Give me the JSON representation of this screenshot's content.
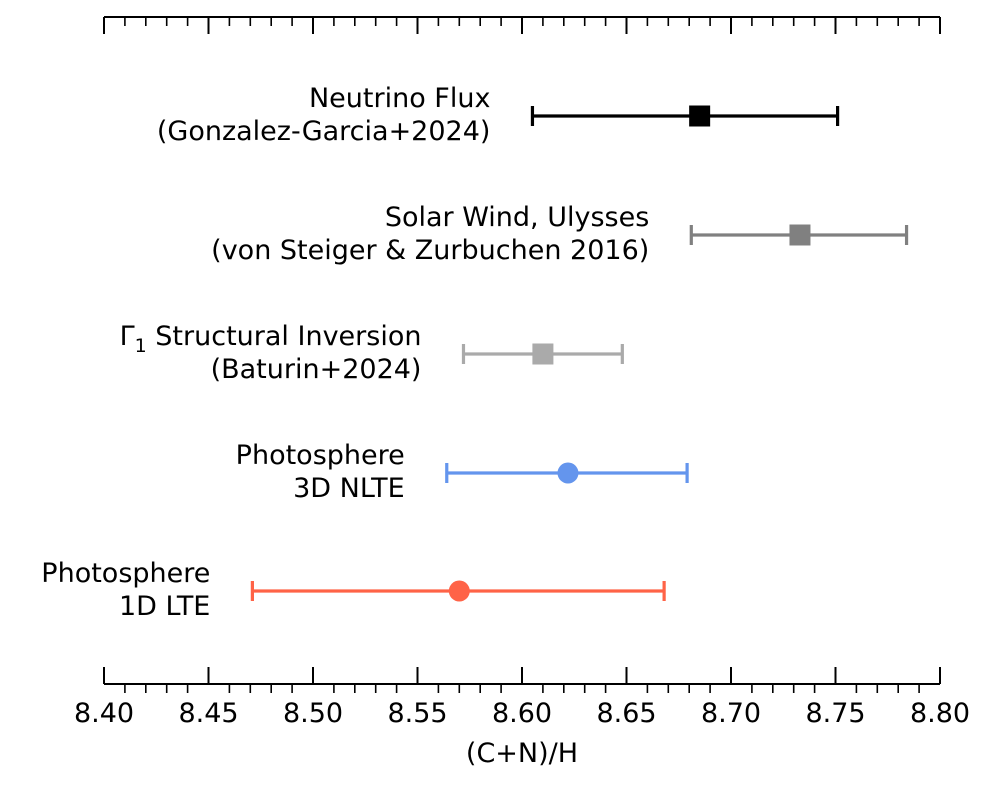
{
  "chart_data": {
    "type": "errorbar",
    "xlabel": "(C+N)/H",
    "xlim": [
      8.4,
      8.8
    ],
    "major_ticks": [
      8.4,
      8.45,
      8.5,
      8.55,
      8.6,
      8.65,
      8.7,
      8.75,
      8.8
    ],
    "tick_labels": [
      "8.40",
      "8.45",
      "8.50",
      "8.55",
      "8.60",
      "8.65",
      "8.70",
      "8.75",
      "8.80"
    ],
    "minor_tick_step": 0.01,
    "grid": false,
    "series": [
      {
        "label_lines": [
          "Neutrino Flux",
          "(Gonzalez-Garcia+2024)"
        ],
        "value": 8.685,
        "err_low": 8.605,
        "err_high": 8.751,
        "marker": "square",
        "color": "#000000"
      },
      {
        "label_lines": [
          "Solar Wind, Ulysses",
          "(von Steiger & Zurbuchen 2016)"
        ],
        "value": 8.733,
        "err_low": 8.681,
        "err_high": 8.784,
        "marker": "square",
        "color": "#808080"
      },
      {
        "label_lines": [
          "Γ₁ Structural Inversion",
          "(Baturin+2024)"
        ],
        "value": 8.61,
        "err_low": 8.572,
        "err_high": 8.648,
        "marker": "square",
        "color": "#aaaaaa"
      },
      {
        "label_lines": [
          "Photosphere",
          "3D NLTE"
        ],
        "value": 8.622,
        "err_low": 8.564,
        "err_high": 8.679,
        "marker": "circle",
        "color": "#6495ed"
      },
      {
        "label_lines": [
          "Photosphere",
          "1D LTE"
        ],
        "value": 8.57,
        "err_low": 8.471,
        "err_high": 8.668,
        "marker": "circle",
        "color": "#ff6347"
      }
    ]
  }
}
